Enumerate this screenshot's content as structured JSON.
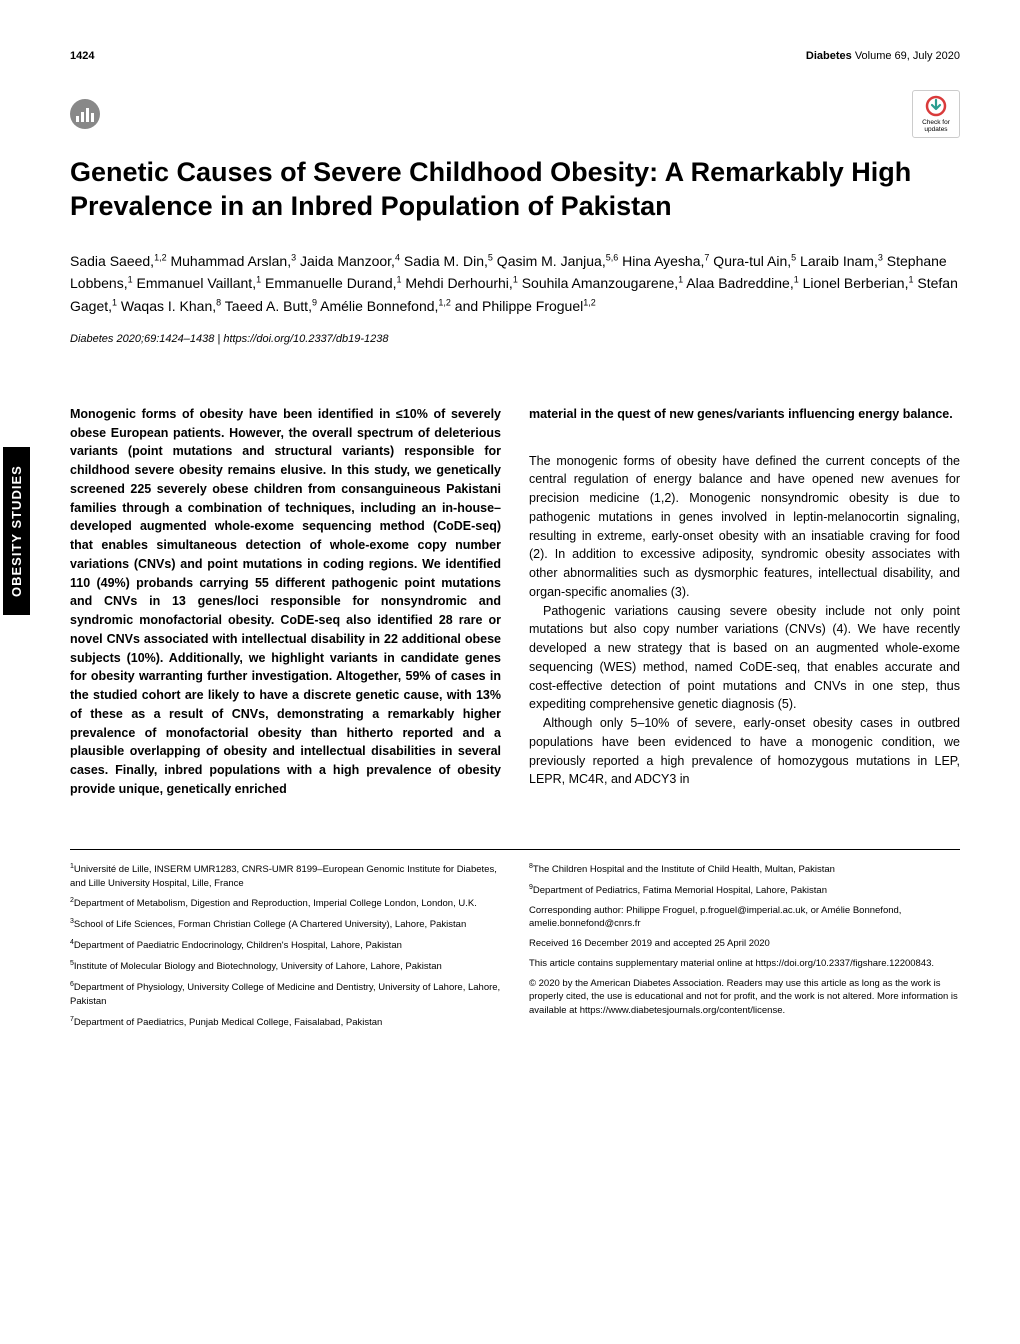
{
  "side_label": "OBESITY STUDIES",
  "header": {
    "page_number": "1424",
    "journal": "Diabetes",
    "volume_issue": "Volume 69, July 2020"
  },
  "check_updates": {
    "line1": "Check for",
    "line2": "updates"
  },
  "title": "Genetic Causes of Severe Childhood Obesity: A Remarkably High Prevalence in an Inbred Population of Pakistan",
  "authors_html": "Sadia Saeed,<sup>1,2</sup> Muhammad Arslan,<sup>3</sup> Jaida Manzoor,<sup>4</sup> Sadia M. Din,<sup>5</sup> Qasim M. Janjua,<sup>5,6</sup> Hina Ayesha,<sup>7</sup> Qura-tul Ain,<sup>5</sup> Laraib Inam,<sup>3</sup> Stephane Lobbens,<sup>1</sup> Emmanuel Vaillant,<sup>1</sup> Emmanuelle Durand,<sup>1</sup> Mehdi Derhourhi,<sup>1</sup> Souhila Amanzougarene,<sup>1</sup> Alaa Badreddine,<sup>1</sup> Lionel Berberian,<sup>1</sup> Stefan Gaget,<sup>1</sup> Waqas I. Khan,<sup>8</sup> Taeed A. Butt,<sup>9</sup> Amélie Bonnefond,<sup>1,2</sup> and Philippe Froguel<sup>1,2</sup>",
  "citation": {
    "text": "Diabetes 2020;69:1424–1438 | ",
    "doi": "https://doi.org/10.2337/db19-1238"
  },
  "abstract_left": "Monogenic forms of obesity have been identified in ≤10% of severely obese European patients. However, the overall spectrum of deleterious variants (point mutations and structural variants) responsible for childhood severe obesity remains elusive. In this study, we genetically screened 225 severely obese children from consanguineous Pakistani families through a combination of techniques, including an in-house–developed augmented whole-exome sequencing method (CoDE-seq) that enables simultaneous detection of whole-exome copy number variations (CNVs) and point mutations in coding regions. We identified 110 (49%) probands carrying 55 different pathogenic point mutations and CNVs in 13 genes/loci responsible for nonsyndromic and syndromic monofactorial obesity. CoDE-seq also identified 28 rare or novel CNVs associated with intellectual disability in 22 additional obese subjects (10%). Additionally, we highlight variants in candidate genes for obesity warranting further investigation. Altogether, 59% of cases in the studied cohort are likely to have a discrete genetic cause, with 13% of these as a result of CNVs, demonstrating a remarkably higher prevalence of monofactorial obesity than hitherto reported and a plausible overlapping of obesity and intellectual disabilities in several cases. Finally, inbred populations with a high prevalence of obesity provide unique, genetically enriched",
  "abstract_right": "material in the quest of new genes/variants influencing energy balance.",
  "body_p1": "The monogenic forms of obesity have defined the current concepts of the central regulation of energy balance and have opened new avenues for precision medicine (1,2). Monogenic nonsyndromic obesity is due to pathogenic mutations in genes involved in leptin-melanocortin signaling, resulting in extreme, early-onset obesity with an insatiable craving for food (2). In addition to excessive adiposity, syndromic obesity associates with other abnormalities such as dysmorphic features, intellectual disability, and organ-specific anomalies (3).",
  "body_p2": "Pathogenic variations causing severe obesity include not only point mutations but also copy number variations (CNVs) (4). We have recently developed a new strategy that is based on an augmented whole-exome sequencing (WES) method, named CoDE-seq, that enables accurate and cost-effective detection of point mutations and CNVs in one step, thus expediting comprehensive genetic diagnosis (5).",
  "body_p3": "Although only 5–10% of severe, early-onset obesity cases in outbred populations have been evidenced to have a monogenic condition, we previously reported a high prevalence of homozygous mutations in LEP, LEPR, MC4R, and ADCY3 in",
  "affiliations_left": [
    "<sup>1</sup>Université de Lille, INSERM UMR1283, CNRS-UMR 8199–European Genomic Institute for Diabetes, and Lille University Hospital, Lille, France",
    "<sup>2</sup>Department of Metabolism, Digestion and Reproduction, Imperial College London, London, U.K.",
    "<sup>3</sup>School of Life Sciences, Forman Christian College (A Chartered University), Lahore, Pakistan",
    "<sup>4</sup>Department of Paediatric Endocrinology, Children's Hospital, Lahore, Pakistan",
    "<sup>5</sup>Institute of Molecular Biology and Biotechnology, University of Lahore, Lahore, Pakistan",
    "<sup>6</sup>Department of Physiology, University College of Medicine and Dentistry, University of Lahore, Lahore, Pakistan",
    "<sup>7</sup>Department of Paediatrics, Punjab Medical College, Faisalabad, Pakistan"
  ],
  "affiliations_right": [
    "<sup>8</sup>The Children Hospital and the Institute of Child Health, Multan, Pakistan",
    "<sup>9</sup>Department of Pediatrics, Fatima Memorial Hospital, Lahore, Pakistan",
    "Corresponding author: Philippe Froguel, p.froguel@imperial.ac.uk, or Amélie Bonnefond, amelie.bonnefond@cnrs.fr",
    "Received 16 December 2019 and accepted 25 April 2020",
    "This article contains supplementary material online at https://doi.org/10.2337/figshare.12200843.",
    "© 2020 by the American Diabetes Association. Readers may use this article as long as the work is properly cited, the use is educational and not for profit, and the work is not altered. More information is available at https://www.diabetesjournals.org/content/license."
  ],
  "colors": {
    "text": "#000000",
    "side_bg": "#000000",
    "side_fg": "#ffffff",
    "icon_bg": "#888888",
    "check_ring": "#d93b3b",
    "check_arrow": "#2a9d8f"
  }
}
